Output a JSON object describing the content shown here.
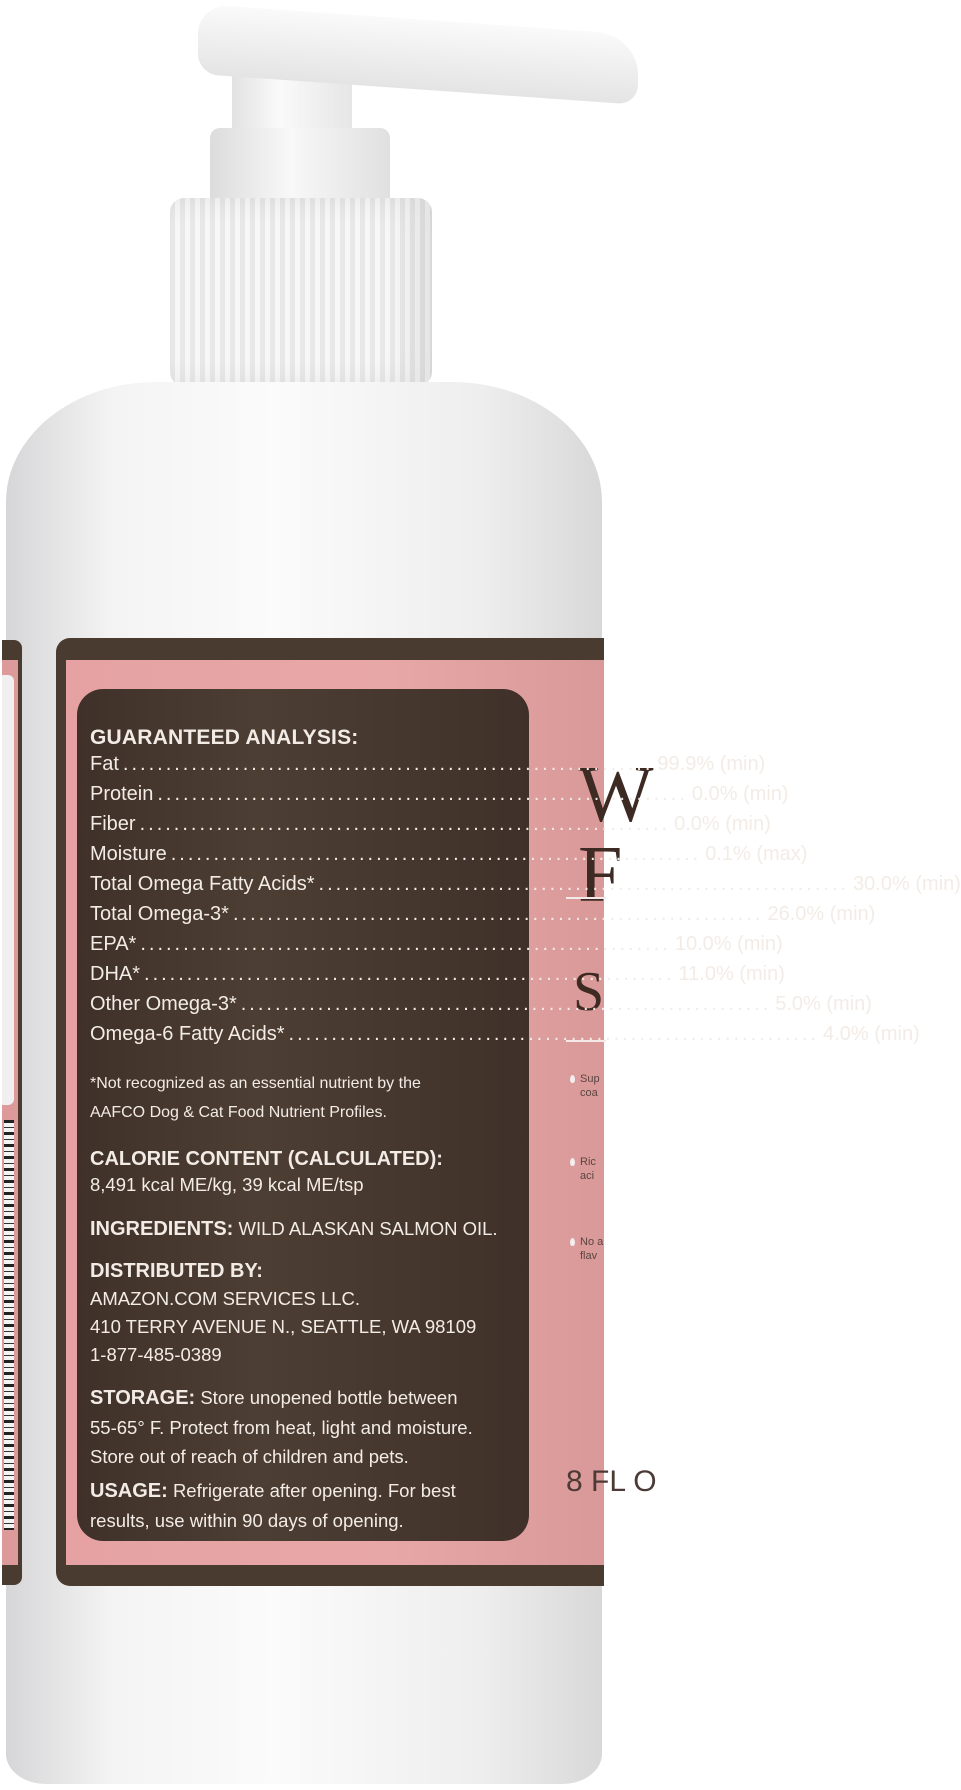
{
  "label": {
    "guaranteed_analysis": {
      "title": "GUARANTEED ANALYSIS:",
      "rows": [
        {
          "name": "Fat",
          "value": "99.9% (min)"
        },
        {
          "name": "Protein",
          "value": "0.0% (min)"
        },
        {
          "name": "Fiber",
          "value": "0.0% (min)"
        },
        {
          "name": "Moisture",
          "value": "0.1% (max)"
        },
        {
          "name": "Total Omega Fatty Acids*",
          "value": "30.0% (min)"
        },
        {
          "name": "Total Omega-3*",
          "value": "26.0% (min)"
        },
        {
          "name": "EPA*",
          "value": "10.0% (min)"
        },
        {
          "name": "DHA*",
          "value": "11.0% (min)"
        },
        {
          "name": "Other Omega-3*",
          "value": "5.0% (min)"
        },
        {
          "name": "Omega-6 Fatty Acids*",
          "value": "4.0% (min)"
        }
      ],
      "footnote_1": "*Not recognized as an essential nutrient by the",
      "footnote_2": "AAFCO Dog & Cat Food Nutrient Profiles."
    },
    "calorie": {
      "title": "CALORIE CONTENT (CALCULATED):",
      "text": "8,491 kcal ME/kg, 39 kcal ME/tsp"
    },
    "ingredients": {
      "title": "INGREDIENTS:",
      "text": "WILD ALASKAN SALMON OIL."
    },
    "distributor": {
      "title": "DISTRIBUTED BY:",
      "line1": "AMAZON.COM SERVICES LLC.",
      "line2": "410 TERRY AVENUE N., SEATTLE, WA 98109",
      "line3": "1-877-485-0389"
    },
    "storage": {
      "title": "STORAGE:",
      "line1": "Store unopened bottle between",
      "line2": "55-65° F. Protect from heat, light and moisture.",
      "line3": "Store out of reach of children and pets."
    },
    "usage": {
      "title": "USAGE:",
      "line1": "Refrigerate after opening. For best",
      "line2": "results, use within 90 days of opening."
    }
  },
  "front_partial": {
    "title_1": "W",
    "title_2": "F",
    "subtitle": "S",
    "bullets": [
      {
        "line1": "Sup",
        "line2": "coa"
      },
      {
        "line1": "Ric",
        "line2": "aci"
      },
      {
        "line1": "No a",
        "line2": "flav"
      }
    ],
    "volume": "8 FL O"
  },
  "colors": {
    "label_brown": "#4a3b31",
    "label_pink": "#e6a2a2",
    "bottle": "#f4f4f4"
  }
}
